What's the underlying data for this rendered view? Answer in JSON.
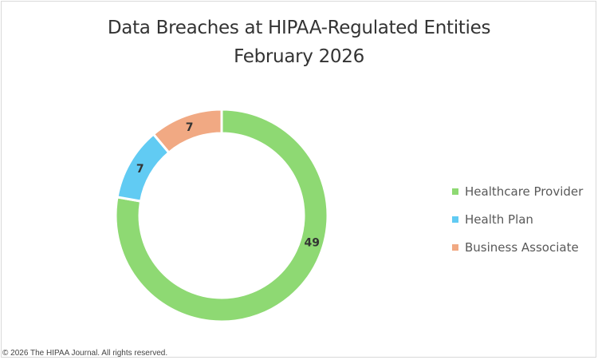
{
  "chart_data": {
    "type": "pie",
    "variant": "donut",
    "title": "Data Breaches at HIPAA-Regulated Entities",
    "subtitle": "February 2026",
    "categories": [
      "Healthcare Provider",
      "Health Plan",
      "Business Associate"
    ],
    "values": [
      49,
      7,
      7
    ],
    "colors": [
      "#8ED973",
      "#61CBF3",
      "#F1A983"
    ],
    "legend_position": "right",
    "data_labels": [
      "49",
      "7",
      "7"
    ]
  },
  "title": {
    "line1": "Data Breaches at HIPAA-Regulated Entities",
    "line2": "February 2026"
  },
  "legend": {
    "items": [
      {
        "label": "Healthcare Provider",
        "color": "#8ED973"
      },
      {
        "label": "Health Plan",
        "color": "#61CBF3"
      },
      {
        "label": "Business Associate",
        "color": "#F1A983"
      }
    ]
  },
  "footer": {
    "copyright": "© 2026 The HIPAA Journal. All rights reserved."
  }
}
